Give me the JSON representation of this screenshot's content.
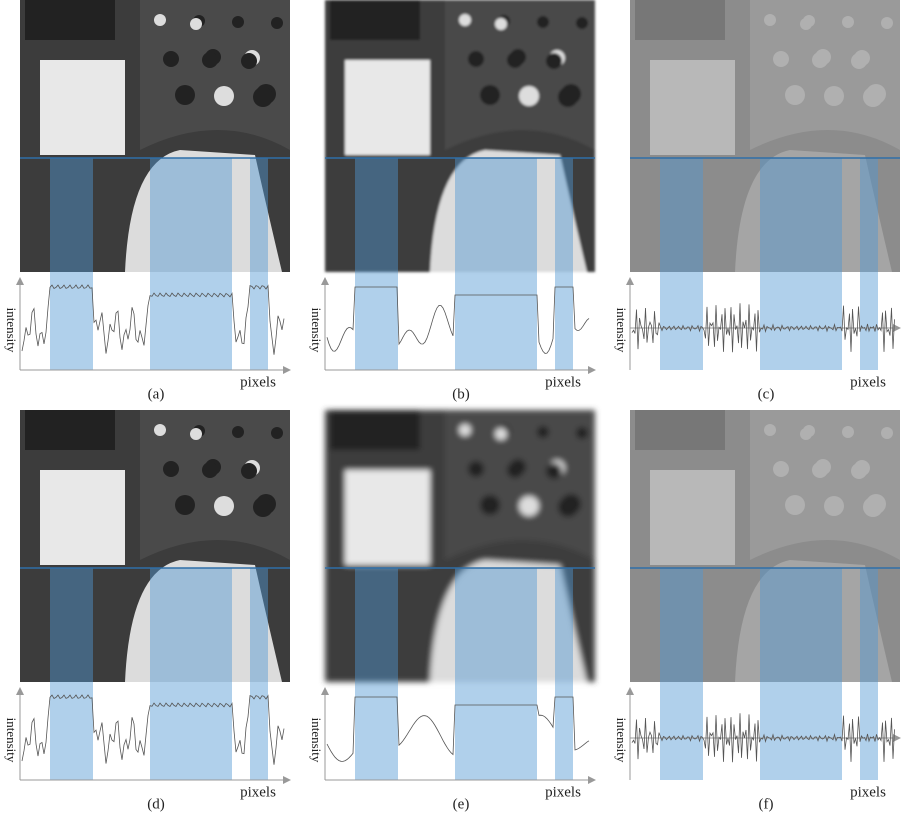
{
  "panels": [
    {
      "label": "(a)",
      "y_axis_label": "intensity",
      "x_axis_label": "pixels"
    },
    {
      "label": "(b)",
      "y_axis_label": "intensity",
      "x_axis_label": "pixels"
    },
    {
      "label": "(c)",
      "y_axis_label": "intensity",
      "x_axis_label": "pixels"
    },
    {
      "label": "(d)",
      "y_axis_label": "intensity",
      "x_axis_label": "pixels"
    },
    {
      "label": "(e)",
      "y_axis_label": "intensity",
      "x_axis_label": "pixels"
    },
    {
      "label": "(f)",
      "y_axis_label": "intensity",
      "x_axis_label": "pixels"
    }
  ]
}
